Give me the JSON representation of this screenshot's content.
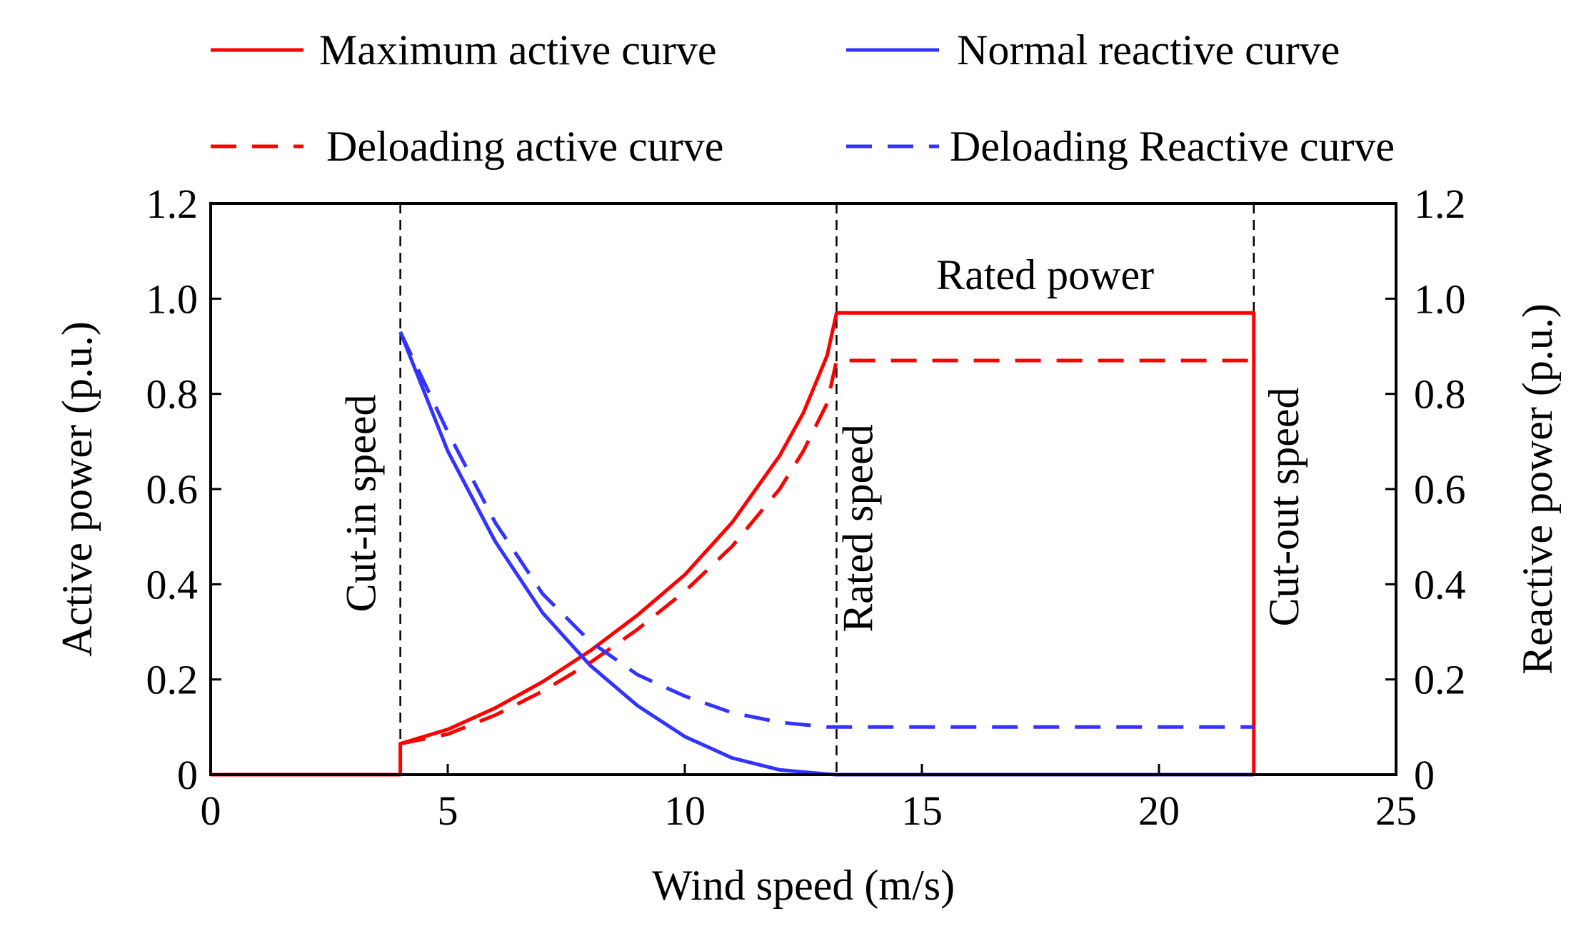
{
  "chart_data": {
    "type": "line",
    "xlabel": "Wind speed (m/s)",
    "ylabel_left": "Active power (p.u.)",
    "ylabel_right": "Reactive power (p.u.)",
    "xlim": [
      0,
      25
    ],
    "ylim": [
      0,
      1.2
    ],
    "xticks": [
      0,
      5,
      10,
      15,
      20,
      25
    ],
    "xtick_labels": [
      "0",
      "5",
      "10",
      "15",
      "20",
      "25"
    ],
    "yticks": [
      0,
      0.2,
      0.4,
      0.6,
      0.8,
      1.0,
      1.2
    ],
    "ytick_labels": [
      "0",
      "0.2",
      "0.4",
      "0.6",
      "0.8",
      "1.0",
      "1.2"
    ],
    "grid": false,
    "legend_position": "top",
    "colors": {
      "red": "#ff0000",
      "blue": "#3333ff",
      "guide": "#000000"
    },
    "series": [
      {
        "name": "Maximum active curve",
        "color": "#ff0000",
        "style": "solid",
        "x": [
          0,
          4,
          4,
          5,
          6,
          7,
          8,
          9,
          10,
          11,
          12,
          12.5,
          13,
          13.2,
          22,
          22
        ],
        "y": [
          0,
          0,
          0.065,
          0.095,
          0.14,
          0.195,
          0.26,
          0.335,
          0.42,
          0.53,
          0.67,
          0.76,
          0.88,
          0.97,
          0.97,
          0
        ]
      },
      {
        "name": "Normal reactive curve",
        "color": "#3333ff",
        "style": "solid",
        "x": [
          4,
          5,
          6,
          7,
          8,
          9,
          10,
          11,
          12,
          13,
          13.2,
          22
        ],
        "y": [
          0.93,
          0.68,
          0.49,
          0.34,
          0.23,
          0.145,
          0.08,
          0.035,
          0.01,
          0.001,
          0,
          0
        ]
      },
      {
        "name": "Deloading active curve",
        "color": "#ff0000",
        "style": "dashed",
        "x": [
          4,
          5,
          6,
          7,
          8,
          9,
          10,
          11,
          12,
          12.5,
          13,
          13.2,
          22
        ],
        "y": [
          0.065,
          0.085,
          0.125,
          0.175,
          0.235,
          0.305,
          0.385,
          0.48,
          0.6,
          0.68,
          0.78,
          0.87,
          0.87
        ]
      },
      {
        "name": "Deloading Reactive curve",
        "color": "#3333ff",
        "style": "dashed",
        "x": [
          4,
          5,
          6,
          7,
          8,
          9,
          10,
          11,
          12,
          13,
          13.2,
          22
        ],
        "y": [
          0.93,
          0.72,
          0.53,
          0.38,
          0.28,
          0.21,
          0.165,
          0.13,
          0.11,
          0.1,
          0.1,
          0.1
        ]
      }
    ],
    "vlines": [
      {
        "x": 4,
        "label": "Cut-in speed"
      },
      {
        "x": 13.2,
        "label": "Rated speed"
      },
      {
        "x": 22,
        "label": "Cut-out speed"
      }
    ],
    "annotations": [
      {
        "text": "Rated power",
        "x": 17.6,
        "y": 1.05
      }
    ]
  }
}
